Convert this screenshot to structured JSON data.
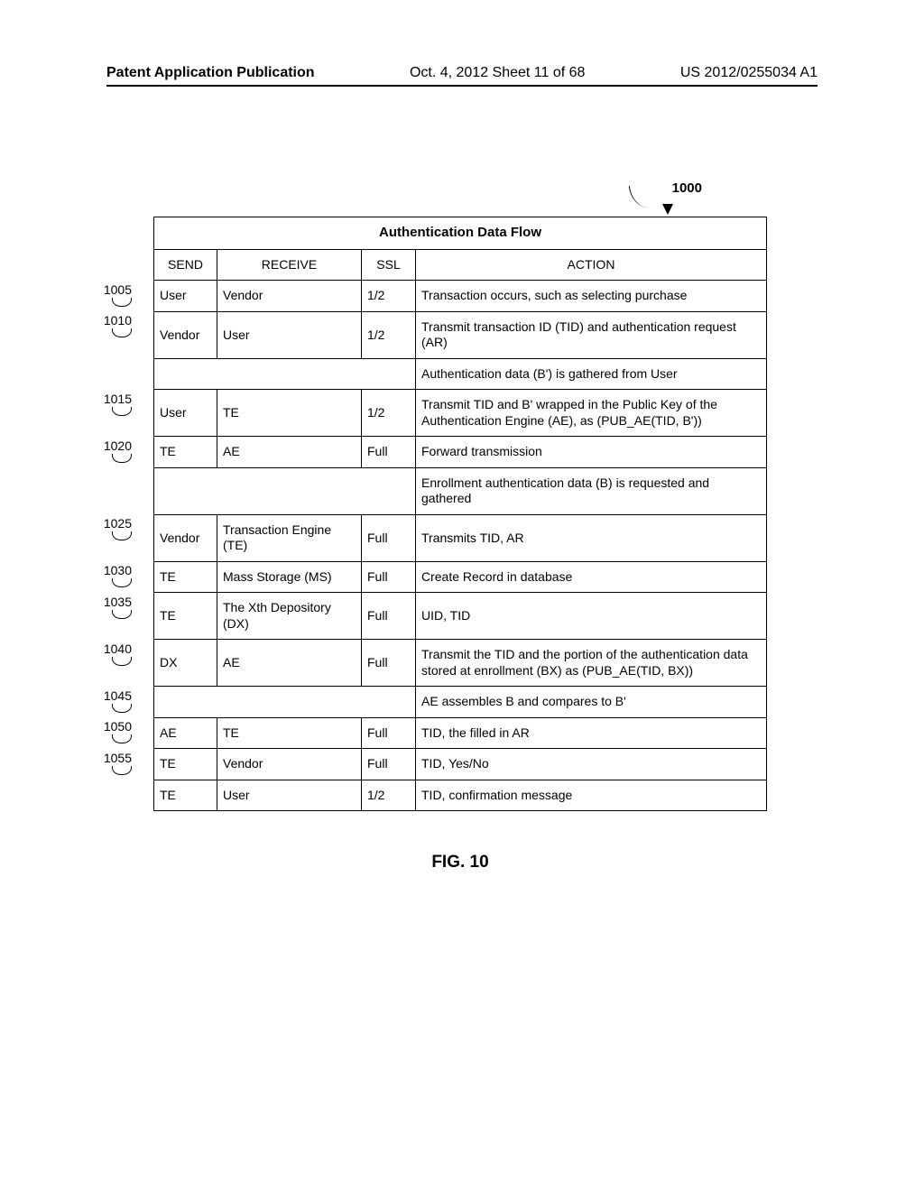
{
  "header": {
    "left": "Patent Application Publication",
    "center": "Oct. 4, 2012  Sheet 11 of 68",
    "right": "US 2012/0255034 A1"
  },
  "figure_label": "1000",
  "table": {
    "title": "Authentication Data Flow",
    "columns": [
      "SEND",
      "RECEIVE",
      "SSL",
      "ACTION"
    ],
    "rows": [
      {
        "label": "1005",
        "send": "User",
        "receive": "Vendor",
        "ssl": "1/2",
        "action": "Transaction occurs, such as selecting purchase"
      },
      {
        "label": "1010",
        "send": "Vendor",
        "receive": "User",
        "ssl": "1/2",
        "action": "Transmit transaction ID (TID) and authentication request (AR)"
      },
      {
        "label": "",
        "merged": true,
        "action": "Authentication data (B') is gathered from User"
      },
      {
        "label": "1015",
        "send": "User",
        "receive": "TE",
        "ssl": "1/2",
        "action": "Transmit TID and B' wrapped in the Public Key of the Authentication Engine (AE), as (PUB_AE(TID, B'))"
      },
      {
        "label": "1020",
        "send": "TE",
        "receive": "AE",
        "ssl": "Full",
        "action": "Forward transmission"
      },
      {
        "label": "",
        "merged": true,
        "action": "Enrollment authentication data (B) is requested and gathered"
      },
      {
        "label": "1025",
        "send": "Vendor",
        "receive": "Transaction Engine (TE)",
        "ssl": "Full",
        "action": "Transmits TID, AR"
      },
      {
        "label": "1030",
        "send": "TE",
        "receive": "Mass Storage (MS)",
        "ssl": "Full",
        "action": "Create Record in database"
      },
      {
        "label": "1035",
        "send": "TE",
        "receive": "The Xth Depository (DX)",
        "ssl": "Full",
        "action": "UID, TID"
      },
      {
        "label": "1040",
        "send": "DX",
        "receive": "AE",
        "ssl": "Full",
        "action": "Transmit the TID and the portion of the authentication data stored at enrollment (BX) as (PUB_AE(TID, BX))"
      },
      {
        "label": "1045",
        "merged": true,
        "action": "AE assembles B and compares to B'"
      },
      {
        "label": "1050",
        "send": "AE",
        "receive": "TE",
        "ssl": "Full",
        "action": "TID, the filled in AR"
      },
      {
        "label": "1055",
        "send": "TE",
        "receive": "Vendor",
        "ssl": "Full",
        "action": "TID, Yes/No"
      },
      {
        "label": "",
        "send": "TE",
        "receive": "User",
        "ssl": "1/2",
        "action": "TID, confirmation message"
      }
    ]
  },
  "caption": "FIG. 10"
}
